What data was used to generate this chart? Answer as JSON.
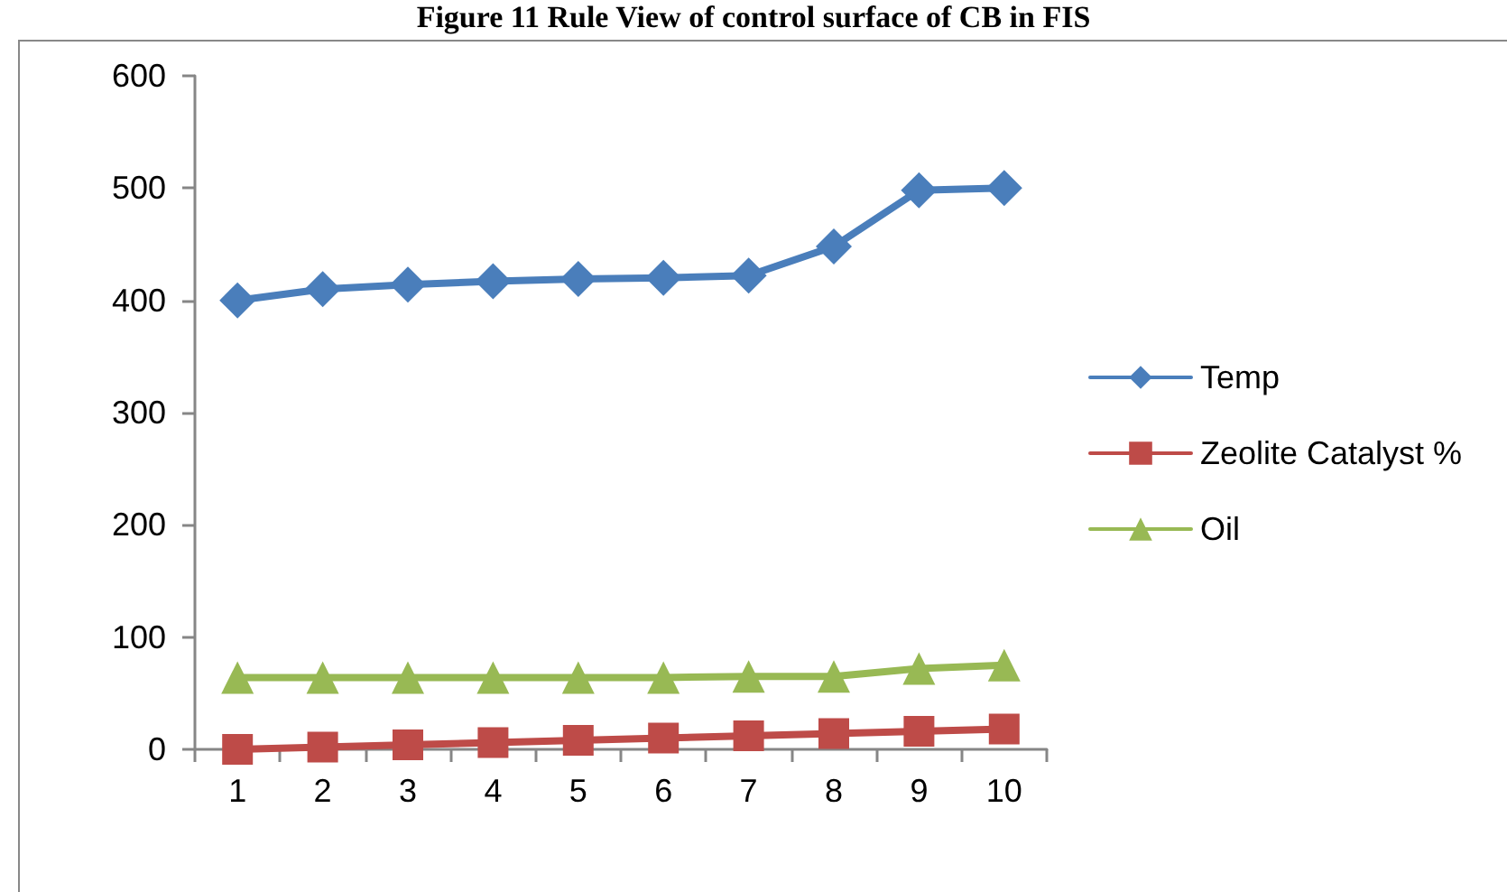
{
  "chart_data": {
    "type": "line",
    "title": "Figure 11 Rule View of control surface of CB in FIS",
    "categories": [
      "1",
      "2",
      "3",
      "4",
      "5",
      "6",
      "7",
      "8",
      "9",
      "10"
    ],
    "series": [
      {
        "name": "Temp",
        "color": "#4a7ebb",
        "marker": "diamond",
        "values": [
          400,
          410,
          414,
          417,
          419,
          420,
          422,
          448,
          498,
          500
        ]
      },
      {
        "name": "Zeolite Catalyst %",
        "color": "#be4b48",
        "marker": "square",
        "values": [
          0,
          2,
          4,
          6,
          8,
          10,
          12,
          14,
          16,
          18
        ]
      },
      {
        "name": "Oil",
        "color": "#98b954",
        "marker": "triangle",
        "values": [
          64,
          64,
          64,
          64,
          64,
          64,
          65,
          65,
          72,
          75
        ]
      }
    ],
    "ylim": [
      0,
      600
    ],
    "yticks": [
      0,
      100,
      200,
      300,
      400,
      500,
      600
    ],
    "grid": false,
    "legend": "right",
    "line_style": "solid"
  }
}
